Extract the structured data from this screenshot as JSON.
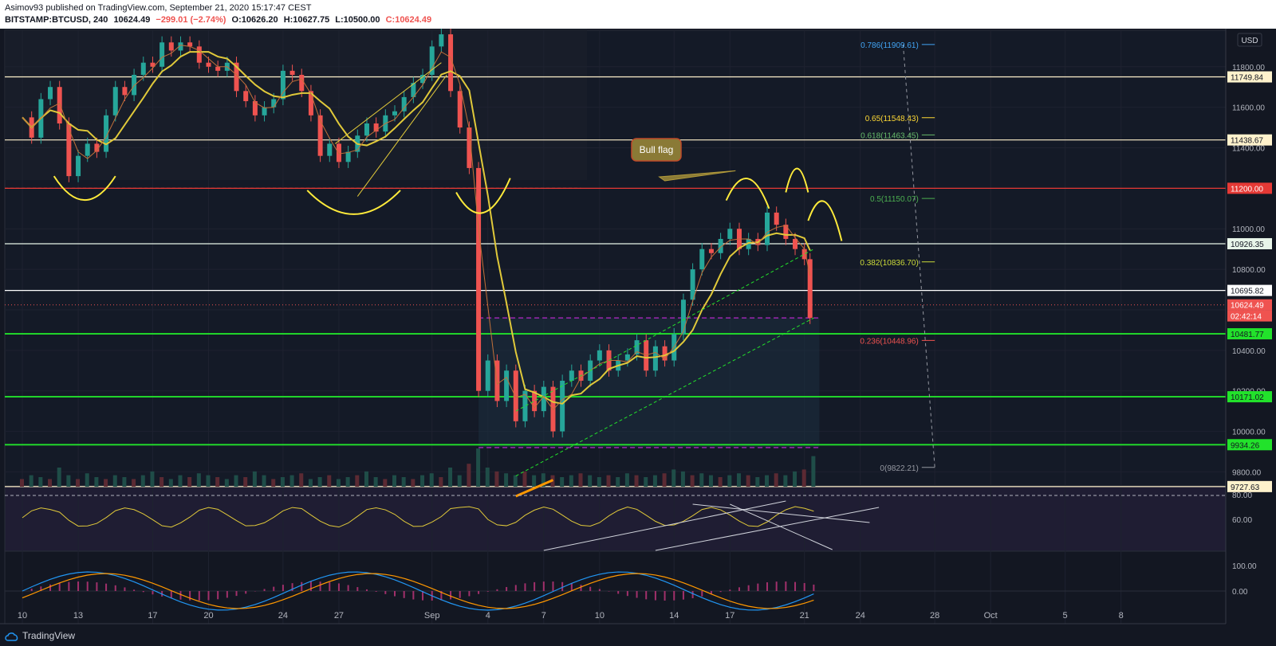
{
  "header": {
    "published": "Asimov93 published on TradingView.com, September 21, 2020 15:17:47 CEST",
    "symbol": "BITSTAMP:BTCUSD, 240",
    "last": "10624.49",
    "change": "−299.01 (−2.74%)",
    "open": "O:10626.20",
    "high": "H:10627.75",
    "low": "L:10500.00",
    "close": "C:10624.49"
  },
  "footer": {
    "brand": "TradingView"
  },
  "colors": {
    "background": "#131722",
    "up": "#26a69a",
    "down": "#ef5350",
    "ma": "#e0c93a",
    "green_line": "#22e22b",
    "red_line": "#e53935"
  },
  "chart_data": {
    "type": "candlestick",
    "currency": "USD",
    "ylim": [
      9727,
      11980
    ],
    "y_ticks": [
      9800,
      10000,
      10200,
      10400,
      10600,
      10800,
      11000,
      11200,
      11400,
      11600,
      11800
    ],
    "y_tick_labels": [
      "9800.00",
      "10000.00",
      "10200.00",
      "10400.00",
      "10600.00",
      "10800.00",
      "11000.00",
      "11200.00",
      "11400.00",
      "11600.00",
      "11800.00"
    ],
    "x_ticks": [
      {
        "label": "10",
        "t": 0
      },
      {
        "label": "13",
        "t": 3
      },
      {
        "label": "17",
        "t": 7
      },
      {
        "label": "20",
        "t": 10
      },
      {
        "label": "24",
        "t": 14
      },
      {
        "label": "27",
        "t": 17
      },
      {
        "label": "Sep",
        "t": 22
      },
      {
        "label": "4",
        "t": 25
      },
      {
        "label": "7",
        "t": 28
      },
      {
        "label": "10",
        "t": 31
      },
      {
        "label": "14",
        "t": 35
      },
      {
        "label": "17",
        "t": 38
      },
      {
        "label": "21",
        "t": 42
      },
      {
        "label": "24",
        "t": 45
      },
      {
        "label": "28",
        "t": 49
      },
      {
        "label": "Oct",
        "t": 52
      },
      {
        "label": "5",
        "t": 56
      },
      {
        "label": "8",
        "t": 59
      }
    ],
    "close_path": [
      [
        0,
        11550
      ],
      [
        0.5,
        11450
      ],
      [
        1,
        11640
      ],
      [
        1.5,
        11700
      ],
      [
        2,
        11520
      ],
      [
        2.5,
        11260
      ],
      [
        3,
        11360
      ],
      [
        3.5,
        11420
      ],
      [
        4,
        11380
      ],
      [
        4.5,
        11560
      ],
      [
        5,
        11700
      ],
      [
        5.5,
        11660
      ],
      [
        6,
        11760
      ],
      [
        6.5,
        11820
      ],
      [
        7,
        11800
      ],
      [
        7.5,
        11920
      ],
      [
        8,
        11880
      ],
      [
        8.5,
        11920
      ],
      [
        9,
        11900
      ],
      [
        9.5,
        11820
      ],
      [
        10,
        11800
      ],
      [
        10.5,
        11780
      ],
      [
        11,
        11820
      ],
      [
        11.5,
        11680
      ],
      [
        12,
        11630
      ],
      [
        12.5,
        11560
      ],
      [
        13,
        11600
      ],
      [
        13.5,
        11640
      ],
      [
        14,
        11780
      ],
      [
        14.5,
        11760
      ],
      [
        15,
        11680
      ],
      [
        15.5,
        11560
      ],
      [
        16,
        11360
      ],
      [
        16.5,
        11420
      ],
      [
        17,
        11330
      ],
      [
        17.5,
        11380
      ],
      [
        18,
        11460
      ],
      [
        18.5,
        11520
      ],
      [
        19,
        11480
      ],
      [
        19.5,
        11560
      ],
      [
        20,
        11580
      ],
      [
        20.5,
        11650
      ],
      [
        21,
        11720
      ],
      [
        21.5,
        11760
      ],
      [
        22,
        11900
      ],
      [
        22.5,
        11960
      ],
      [
        23,
        11680
      ],
      [
        23.5,
        11500
      ],
      [
        24,
        11300
      ],
      [
        24.5,
        10200
      ],
      [
        25,
        10350
      ],
      [
        25.5,
        10150
      ],
      [
        26,
        10300
      ],
      [
        26.5,
        10050
      ],
      [
        27,
        10200
      ],
      [
        27.5,
        10100
      ],
      [
        28,
        10220
      ],
      [
        28.5,
        10000
      ],
      [
        29,
        10250
      ],
      [
        29.5,
        10300
      ],
      [
        30,
        10250
      ],
      [
        30.5,
        10350
      ],
      [
        31,
        10400
      ],
      [
        31.5,
        10300
      ],
      [
        32,
        10350
      ],
      [
        32.5,
        10380
      ],
      [
        33,
        10450
      ],
      [
        33.5,
        10300
      ],
      [
        34,
        10420
      ],
      [
        34.5,
        10350
      ],
      [
        35,
        10480
      ],
      [
        35.5,
        10650
      ],
      [
        36,
        10800
      ],
      [
        36.5,
        10900
      ],
      [
        37,
        10880
      ],
      [
        37.5,
        10950
      ],
      [
        38,
        11000
      ],
      [
        38.5,
        10900
      ],
      [
        39,
        10950
      ],
      [
        39.5,
        10920
      ],
      [
        40,
        11080
      ],
      [
        40.5,
        11020
      ],
      [
        41,
        10950
      ],
      [
        41.5,
        10900
      ],
      [
        42,
        10850
      ],
      [
        42.3,
        10560
      ]
    ],
    "volume_rel": [
      0.2,
      0.3,
      0.25,
      0.2,
      0.5,
      0.3,
      0.2,
      0.35,
      0.25,
      0.2,
      0.3,
      0.25,
      0.2,
      0.3,
      0.4,
      0.25,
      0.2,
      0.3,
      0.25,
      0.35,
      0.3,
      0.25,
      0.2,
      0.3,
      0.25,
      0.4,
      0.3,
      0.2,
      0.25,
      0.3,
      0.35,
      0.2,
      0.25,
      0.3,
      0.2,
      0.25,
      0.3,
      0.4,
      0.25,
      0.2,
      0.3,
      0.25,
      0.2,
      0.3,
      0.35,
      0.25,
      0.5,
      0.3,
      0.6,
      1.0,
      0.5,
      0.4,
      0.35,
      0.3,
      0.4,
      0.3,
      0.35,
      0.3,
      0.25,
      0.3,
      0.35,
      0.3,
      0.25,
      0.3,
      0.25,
      0.35,
      0.3,
      0.25,
      0.3,
      0.35,
      0.45,
      0.4,
      0.3,
      0.35,
      0.3,
      0.25,
      0.3,
      0.35,
      0.3,
      0.25,
      0.3,
      0.35,
      0.3,
      0.4,
      0.45,
      0.8
    ],
    "price_labels": [
      {
        "value": "11749.84",
        "price": 11749.84,
        "bg": "#fff2cc",
        "fg": "#131722"
      },
      {
        "value": "11438.67",
        "price": 11438.67,
        "bg": "#fff2cc",
        "fg": "#131722"
      },
      {
        "value": "11200.00",
        "price": 11200,
        "bg": "#e53935",
        "fg": "#ffffff"
      },
      {
        "value": "10926.35",
        "price": 10926.35,
        "bg": "#e8f5e9",
        "fg": "#131722"
      },
      {
        "value": "10695.82",
        "price": 10695.82,
        "bg": "#ffffff",
        "fg": "#131722"
      },
      {
        "value": "10624.49",
        "price": 10624.49,
        "bg": "#ef5350",
        "fg": "#ffffff"
      },
      {
        "value": "02:42:14",
        "price": 10570,
        "bg": "#ef5350",
        "fg": "#ffffff"
      },
      {
        "value": "10481.77",
        "price": 10481.77,
        "bg": "#22e22b",
        "fg": "#131722"
      },
      {
        "value": "10171.02",
        "price": 10171.02,
        "bg": "#22e22b",
        "fg": "#131722"
      },
      {
        "value": "9934.26",
        "price": 9934.26,
        "bg": "#22e22b",
        "fg": "#131722"
      },
      {
        "value": "9727.63",
        "price": 9727.63,
        "bg": "#fff2cc",
        "fg": "#131722"
      }
    ],
    "horizontal_lines": [
      {
        "price": 11749.84,
        "color": "#fff2cc"
      },
      {
        "price": 11438.67,
        "color": "#fff2cc"
      },
      {
        "price": 11200,
        "color": "#e53935"
      },
      {
        "price": 10926.35,
        "color": "#e8f5e9"
      },
      {
        "price": 10695.82,
        "color": "#ffffff"
      },
      {
        "price": 10481.77,
        "color": "#22e22b"
      },
      {
        "price": 10171.02,
        "color": "#22e22b"
      },
      {
        "price": 9934.26,
        "color": "#22e22b"
      },
      {
        "price": 9727.63,
        "color": "#fff2cc"
      }
    ],
    "fib_levels": [
      {
        "label": "0.786(11909.61)",
        "price": 11909.61,
        "color": "#42a5f5"
      },
      {
        "label": "0.65(11548.43)",
        "price": 11548.43,
        "color": "#fdd835"
      },
      {
        "label": "0.618(11463.45)",
        "price": 11463.45,
        "color": "#66bb6a"
      },
      {
        "label": "0.5(11150.07)",
        "price": 11150.07,
        "color": "#4caf50"
      },
      {
        "label": "0.382(10836.70)",
        "price": 10836.7,
        "color": "#cddc39"
      },
      {
        "label": "0.236(10448.96)",
        "price": 10448.96,
        "color": "#ef5350"
      },
      {
        "label": "0(9822.21)",
        "price": 9822.21,
        "color": "#9598a1"
      }
    ],
    "annotation": "Bull flag",
    "rsi": {
      "ticks": [
        "80.00",
        "60.00"
      ]
    },
    "macd": {
      "ticks": [
        "100.00",
        "0.00"
      ]
    }
  }
}
